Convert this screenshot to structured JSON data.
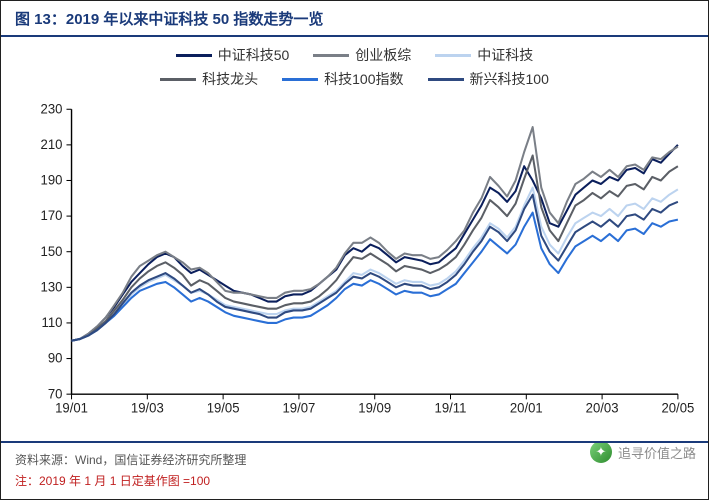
{
  "title": "图 13：2019 年以来中证科技 50 指数走势一览",
  "title_fontsize": 15,
  "source_label": "资料来源：Wind，国信证券经济研究所整理",
  "note_label": "注：2019 年 1 月 1 日定基作图 =100",
  "watermark": "追寻价值之路",
  "chart": {
    "type": "line",
    "background_color": "#ffffff",
    "axis_color": "#000000",
    "grid_on": false,
    "ylim": [
      70,
      230
    ],
    "ytick_step": 20,
    "yticks": [
      70,
      90,
      110,
      130,
      150,
      170,
      190,
      210,
      230
    ],
    "ytick_fontsize": 13,
    "x_categories": [
      "19/01",
      "19/03",
      "19/05",
      "19/07",
      "19/09",
      "19/11",
      "20/01",
      "20/03",
      "20/05"
    ],
    "xtick_fontsize": 13,
    "n_points": 72,
    "line_width": 2,
    "series": [
      {
        "name": "中证科技50",
        "color": "#0b1f5c",
        "values": [
          100,
          101,
          104,
          108,
          113,
          119,
          126,
          133,
          138,
          143,
          147,
          149,
          147,
          142,
          138,
          140,
          137,
          134,
          131,
          128,
          127,
          126,
          124,
          122,
          122,
          125,
          126,
          126,
          128,
          132,
          136,
          140,
          148,
          152,
          150,
          154,
          152,
          148,
          144,
          147,
          146,
          145,
          143,
          144,
          148,
          152,
          160,
          168,
          176,
          186,
          183,
          178,
          184,
          198,
          190,
          180,
          166,
          164,
          173,
          182,
          186,
          190,
          188,
          192,
          190,
          196,
          197,
          194,
          202,
          200,
          205,
          210
        ]
      },
      {
        "name": "创业板综",
        "color": "#7a7f87",
        "values": [
          100,
          101,
          104,
          108,
          113,
          120,
          127,
          136,
          142,
          145,
          148,
          150,
          147,
          144,
          140,
          141,
          138,
          133,
          128,
          127,
          127,
          126,
          125,
          124,
          124,
          127,
          128,
          128,
          129,
          132,
          136,
          141,
          149,
          155,
          155,
          158,
          155,
          150,
          146,
          149,
          148,
          148,
          146,
          147,
          151,
          156,
          162,
          172,
          180,
          192,
          187,
          181,
          190,
          206,
          220,
          186,
          172,
          166,
          178,
          188,
          191,
          195,
          192,
          196,
          192,
          198,
          199,
          196,
          203,
          202,
          206,
          209
        ]
      },
      {
        "name": "中证科技",
        "color": "#bcd3ef",
        "values": [
          100,
          101,
          103,
          106,
          110,
          115,
          120,
          126,
          130,
          133,
          135,
          137,
          134,
          131,
          127,
          128,
          126,
          123,
          120,
          119,
          118,
          117,
          116,
          115,
          115,
          117,
          118,
          118,
          119,
          122,
          125,
          128,
          133,
          138,
          137,
          140,
          138,
          135,
          132,
          134,
          133,
          133,
          131,
          132,
          135,
          139,
          145,
          152,
          158,
          166,
          163,
          158,
          164,
          176,
          186,
          164,
          154,
          149,
          158,
          166,
          169,
          172,
          170,
          174,
          170,
          176,
          177,
          174,
          180,
          178,
          182,
          185
        ]
      },
      {
        "name": "科技龙头",
        "color": "#5b5f66",
        "values": [
          100,
          101,
          103,
          107,
          111,
          117,
          123,
          130,
          135,
          139,
          142,
          144,
          141,
          137,
          131,
          134,
          132,
          128,
          124,
          122,
          121,
          120,
          119,
          118,
          118,
          120,
          121,
          121,
          122,
          125,
          129,
          134,
          141,
          147,
          146,
          149,
          146,
          143,
          139,
          142,
          141,
          140,
          138,
          140,
          143,
          147,
          154,
          162,
          169,
          179,
          175,
          170,
          177,
          191,
          204,
          175,
          162,
          156,
          166,
          176,
          179,
          183,
          180,
          184,
          181,
          187,
          188,
          185,
          192,
          190,
          195,
          198
        ]
      },
      {
        "name": "科技100指数",
        "color": "#2a6fd6",
        "values": [
          100,
          101,
          103,
          106,
          110,
          114,
          119,
          124,
          128,
          130,
          132,
          133,
          130,
          126,
          122,
          124,
          122,
          119,
          116,
          114,
          113,
          112,
          111,
          110,
          110,
          112,
          113,
          113,
          114,
          117,
          120,
          124,
          129,
          132,
          131,
          134,
          132,
          129,
          126,
          128,
          127,
          127,
          125,
          126,
          129,
          132,
          138,
          144,
          150,
          157,
          153,
          149,
          154,
          164,
          172,
          152,
          143,
          138,
          146,
          153,
          156,
          159,
          156,
          160,
          156,
          162,
          163,
          160,
          166,
          164,
          167,
          168
        ]
      },
      {
        "name": "新兴科技100",
        "color": "#2f4a80",
        "values": [
          100,
          101,
          103,
          106,
          110,
          115,
          121,
          127,
          131,
          134,
          136,
          138,
          135,
          131,
          127,
          129,
          126,
          122,
          119,
          118,
          117,
          116,
          115,
          113,
          113,
          116,
          117,
          117,
          118,
          121,
          124,
          127,
          132,
          136,
          135,
          138,
          136,
          133,
          130,
          132,
          131,
          131,
          129,
          130,
          133,
          137,
          143,
          150,
          156,
          164,
          161,
          156,
          162,
          174,
          182,
          159,
          150,
          145,
          153,
          161,
          164,
          167,
          164,
          168,
          164,
          170,
          171,
          168,
          174,
          172,
          176,
          178
        ]
      }
    ]
  }
}
